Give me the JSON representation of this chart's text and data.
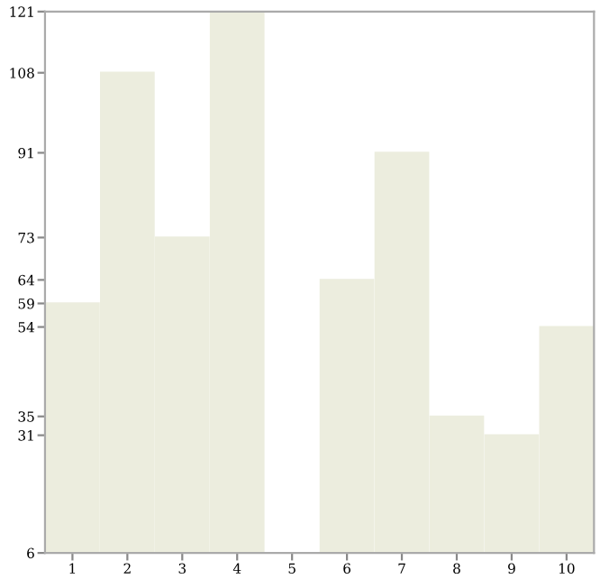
{
  "chart_data": {
    "type": "bar",
    "categories": [
      "1",
      "2",
      "3",
      "4",
      "5",
      "6",
      "7",
      "8",
      "9",
      "10"
    ],
    "values": [
      59,
      108,
      73,
      121,
      6,
      64,
      91,
      35,
      31,
      54
    ],
    "color": "#ecedde",
    "ylim": [
      6,
      121
    ],
    "yticks": [
      6,
      31,
      35,
      54,
      59,
      64,
      73,
      91,
      108,
      121
    ],
    "grid": false
  }
}
